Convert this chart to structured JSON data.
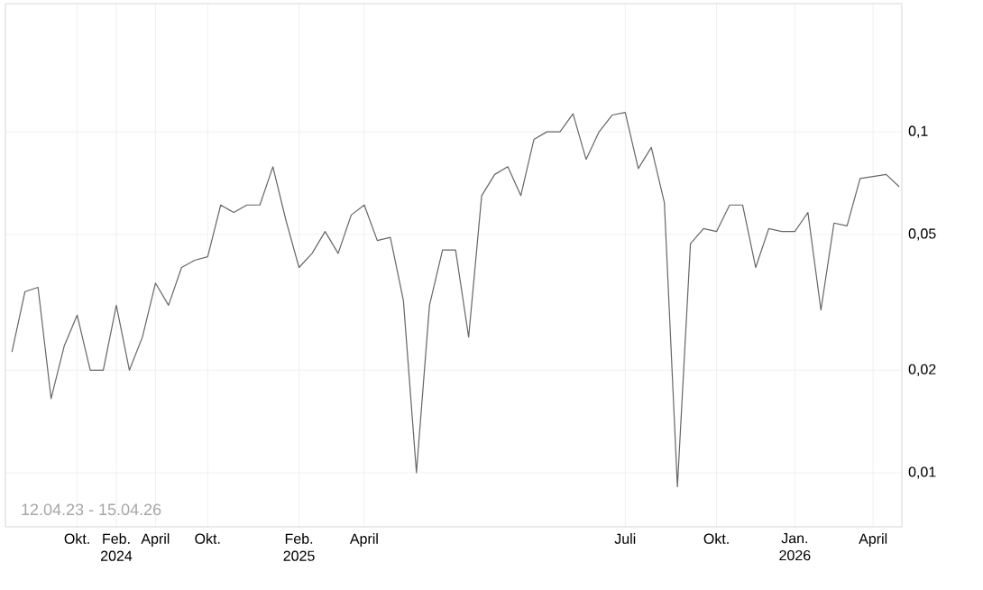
{
  "chart_data": {
    "type": "line",
    "log": "y",
    "grid": true,
    "marker": "none",
    "line_style": "solid",
    "categories": [
      null,
      null,
      null,
      null,
      null,
      "Okt.",
      null,
      null,
      "Feb. 2024",
      null,
      null,
      "April",
      null,
      null,
      null,
      "Okt.",
      null,
      null,
      null,
      null,
      null,
      null,
      "Feb. 2025",
      null,
      null,
      null,
      null,
      "April",
      null,
      null,
      null,
      null,
      null,
      null,
      null,
      null,
      null,
      null,
      null,
      null,
      null,
      null,
      null,
      null,
      null,
      null,
      null,
      "Juli",
      null,
      null,
      null,
      null,
      null,
      null,
      "Okt.",
      null,
      null,
      null,
      null,
      null,
      "Jan. 2026",
      null,
      null,
      null,
      null,
      null,
      "April",
      null,
      null
    ],
    "series": [
      {
        "color": "#666666",
        "values": [
          0.0226,
          0.034,
          0.035,
          0.0165,
          0.0235,
          0.029,
          0.02,
          0.02,
          0.031,
          0.02,
          0.025,
          0.036,
          0.031,
          0.04,
          0.042,
          0.043,
          0.061,
          0.058,
          0.061,
          0.061,
          0.079,
          0.055,
          0.04,
          0.044,
          0.051,
          0.044,
          0.057,
          0.061,
          0.048,
          0.049,
          0.032,
          0.01,
          0.031,
          0.045,
          0.045,
          0.025,
          0.065,
          0.075,
          0.079,
          0.065,
          0.095,
          0.1,
          0.1,
          0.113,
          0.083,
          0.1,
          0.112,
          0.114,
          0.078,
          0.09,
          0.062,
          0.0091,
          0.047,
          0.052,
          0.051,
          0.061,
          0.061,
          0.04,
          0.052,
          0.051,
          0.051,
          0.058,
          0.03,
          0.054,
          0.053,
          0.073,
          0.074,
          0.075,
          0.069
        ]
      }
    ],
    "ylim": [
      0.00694,
      0.2377
    ],
    "yticks": [
      {
        "value": 0.01,
        "label": "0,01"
      },
      {
        "value": 0.02,
        "label": "0,02"
      },
      {
        "value": 0.05,
        "label": "0,05"
      },
      {
        "value": 0.1,
        "label": "0,1"
      }
    ],
    "annotations": [
      "12.04.23 - 15.04.26"
    ]
  }
}
